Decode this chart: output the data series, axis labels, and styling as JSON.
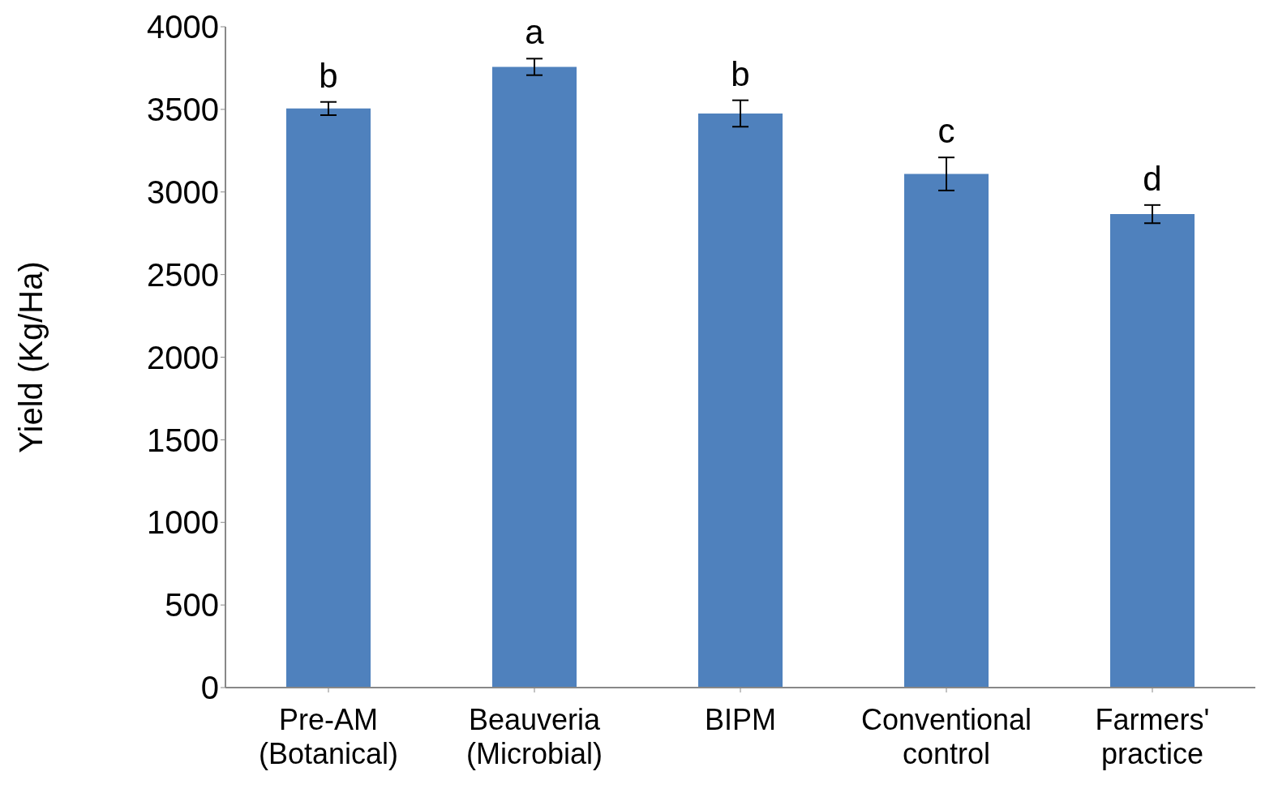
{
  "chart_data": {
    "type": "bar",
    "ylabel": "Yield (Kg/Ha)",
    "categories": [
      "Pre-AM (Botanical)",
      "Beauveria (Microbial)",
      "BIPM",
      "Conventional control",
      "Farmers' practice"
    ],
    "values": [
      3505,
      3757,
      3475,
      3109,
      2866
    ],
    "errors": [
      40,
      50,
      80,
      100,
      55
    ],
    "color": "#4f81bd",
    "ylim": [
      0,
      4000
    ],
    "yticks": [
      0,
      500,
      1000,
      1500,
      2000,
      2500,
      3000,
      3500,
      4000
    ],
    "grid": false,
    "legend": false,
    "annotations": [
      "b",
      "a",
      "b",
      "c",
      "d"
    ]
  }
}
